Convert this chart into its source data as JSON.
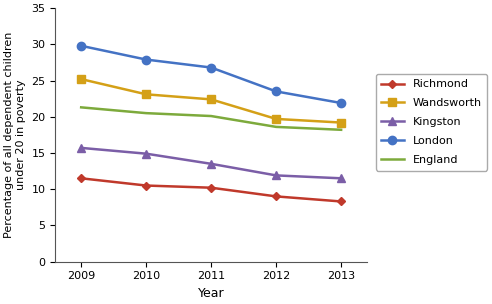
{
  "years": [
    2009,
    2010,
    2011,
    2012,
    2013
  ],
  "series": {
    "Richmond": [
      11.5,
      10.5,
      10.2,
      9.0,
      8.3
    ],
    "Wandsworth": [
      25.2,
      23.1,
      22.4,
      19.7,
      19.2
    ],
    "Kingston": [
      15.7,
      14.9,
      13.5,
      11.9,
      11.5
    ],
    "London": [
      29.8,
      27.9,
      26.8,
      23.5,
      21.9
    ],
    "England": [
      21.3,
      20.5,
      20.1,
      18.6,
      18.2
    ]
  },
  "colors": {
    "Richmond": "#c0392b",
    "Wandsworth": "#d4a017",
    "Kingston": "#7b5ea7",
    "London": "#4472c4",
    "England": "#7daa3c"
  },
  "markers": {
    "Richmond": "D",
    "Wandsworth": "s",
    "Kingston": "^",
    "London": "o",
    "England": "None"
  },
  "markersize": {
    "Richmond": 4,
    "Wandsworth": 6,
    "Kingston": 6,
    "London": 6,
    "England": 0
  },
  "ylabel": "Percentage of all dependent children\nunder 20 in poverty",
  "xlabel": "Year",
  "ylim": [
    0,
    35
  ],
  "yticks": [
    0,
    5,
    10,
    15,
    20,
    25,
    30,
    35
  ],
  "legend_order": [
    "Richmond",
    "Wandsworth",
    "Kingston",
    "London",
    "England"
  ],
  "title": ""
}
